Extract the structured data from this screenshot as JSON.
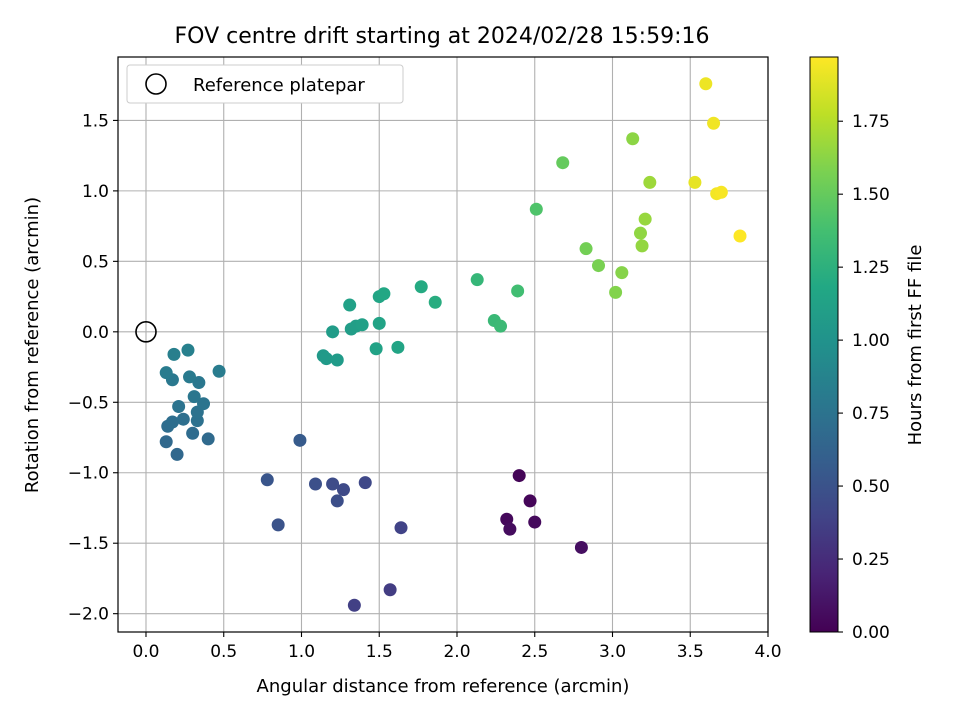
{
  "chart_data": {
    "type": "scatter",
    "title": "FOV centre drift starting at 2024/02/28 15:59:16",
    "xlabel": "Angular distance from reference (arcmin)",
    "ylabel": "Rotation from reference (arcmin)",
    "xlim": [
      -0.18,
      4.0
    ],
    "ylim": [
      -2.13,
      1.95
    ],
    "xticks": [
      0.0,
      0.5,
      1.0,
      1.5,
      2.0,
      2.5,
      3.0,
      3.5,
      4.0
    ],
    "xtick_labels": [
      "0.0",
      "0.5",
      "1.0",
      "1.5",
      "2.0",
      "2.5",
      "3.0",
      "3.5",
      "4.0"
    ],
    "yticks": [
      -2.0,
      -1.5,
      -1.0,
      -0.5,
      0.0,
      0.5,
      1.0,
      1.5
    ],
    "ytick_labels": [
      "−2.0",
      "−1.5",
      "−1.0",
      "−0.5",
      "0.0",
      "0.5",
      "1.0",
      "1.5"
    ],
    "grid": true,
    "legend": {
      "position": "upper-left",
      "entries": [
        {
          "label": "Reference platepar",
          "marker": "open-circle",
          "x": 0.0,
          "y": 0.0
        }
      ]
    },
    "colorbar": {
      "label": "Hours from first FF file",
      "colormap": "viridis",
      "range": [
        0.0,
        1.97
      ],
      "ticks": [
        0.0,
        0.25,
        0.5,
        0.75,
        1.0,
        1.25,
        1.5,
        1.75
      ],
      "tick_labels": [
        "0.00",
        "0.25",
        "0.50",
        "0.75",
        "1.00",
        "1.25",
        "1.50",
        "1.75"
      ]
    },
    "points": [
      {
        "x": 2.4,
        "y": -1.02,
        "c": 0.02
      },
      {
        "x": 2.47,
        "y": -1.2,
        "c": 0.03
      },
      {
        "x": 2.32,
        "y": -1.33,
        "c": 0.04
      },
      {
        "x": 2.5,
        "y": -1.35,
        "c": 0.05
      },
      {
        "x": 2.34,
        "y": -1.4,
        "c": 0.06
      },
      {
        "x": 2.8,
        "y": -1.53,
        "c": 0.08
      },
      {
        "x": 1.57,
        "y": -1.83,
        "c": 0.35
      },
      {
        "x": 1.34,
        "y": -1.94,
        "c": 0.37
      },
      {
        "x": 1.64,
        "y": -1.39,
        "c": 0.39
      },
      {
        "x": 1.41,
        "y": -1.07,
        "c": 0.42
      },
      {
        "x": 1.27,
        "y": -1.12,
        "c": 0.44
      },
      {
        "x": 1.2,
        "y": -1.08,
        "c": 0.45
      },
      {
        "x": 1.23,
        "y": -1.2,
        "c": 0.47
      },
      {
        "x": 1.09,
        "y": -1.08,
        "c": 0.48
      },
      {
        "x": 0.85,
        "y": -1.37,
        "c": 0.5
      },
      {
        "x": 0.78,
        "y": -1.05,
        "c": 0.52
      },
      {
        "x": 0.99,
        "y": -0.77,
        "c": 0.56
      },
      {
        "x": 0.2,
        "y": -0.87,
        "c": 0.66
      },
      {
        "x": 0.13,
        "y": -0.78,
        "c": 0.67
      },
      {
        "x": 0.4,
        "y": -0.76,
        "c": 0.68
      },
      {
        "x": 0.3,
        "y": -0.72,
        "c": 0.69
      },
      {
        "x": 0.14,
        "y": -0.67,
        "c": 0.7
      },
      {
        "x": 0.17,
        "y": -0.64,
        "c": 0.71
      },
      {
        "x": 0.24,
        "y": -0.62,
        "c": 0.72
      },
      {
        "x": 0.33,
        "y": -0.63,
        "c": 0.73
      },
      {
        "x": 0.33,
        "y": -0.57,
        "c": 0.74
      },
      {
        "x": 0.21,
        "y": -0.53,
        "c": 0.75
      },
      {
        "x": 0.37,
        "y": -0.51,
        "c": 0.76
      },
      {
        "x": 0.31,
        "y": -0.46,
        "c": 0.77
      },
      {
        "x": 0.34,
        "y": -0.36,
        "c": 0.78
      },
      {
        "x": 0.17,
        "y": -0.34,
        "c": 0.79
      },
      {
        "x": 0.28,
        "y": -0.32,
        "c": 0.8
      },
      {
        "x": 0.13,
        "y": -0.29,
        "c": 0.81
      },
      {
        "x": 0.47,
        "y": -0.28,
        "c": 0.82
      },
      {
        "x": 0.18,
        "y": -0.16,
        "c": 0.84
      },
      {
        "x": 0.27,
        "y": -0.13,
        "c": 0.85
      },
      {
        "x": 1.14,
        "y": -0.17,
        "c": 1.05
      },
      {
        "x": 1.16,
        "y": -0.19,
        "c": 1.06
      },
      {
        "x": 1.23,
        "y": -0.2,
        "c": 1.07
      },
      {
        "x": 1.2,
        "y": 0.0,
        "c": 1.08
      },
      {
        "x": 1.32,
        "y": 0.02,
        "c": 1.09
      },
      {
        "x": 1.35,
        "y": 0.04,
        "c": 1.1
      },
      {
        "x": 1.39,
        "y": 0.05,
        "c": 1.11
      },
      {
        "x": 1.31,
        "y": 0.19,
        "c": 1.12
      },
      {
        "x": 1.48,
        "y": -0.12,
        "c": 1.13
      },
      {
        "x": 1.5,
        "y": 0.06,
        "c": 1.14
      },
      {
        "x": 1.62,
        "y": -0.11,
        "c": 1.15
      },
      {
        "x": 1.5,
        "y": 0.25,
        "c": 1.16
      },
      {
        "x": 1.53,
        "y": 0.27,
        "c": 1.17
      },
      {
        "x": 1.77,
        "y": 0.32,
        "c": 1.2
      },
      {
        "x": 1.86,
        "y": 0.21,
        "c": 1.22
      },
      {
        "x": 2.13,
        "y": 0.37,
        "c": 1.3
      },
      {
        "x": 2.24,
        "y": 0.08,
        "c": 1.32
      },
      {
        "x": 2.28,
        "y": 0.04,
        "c": 1.33
      },
      {
        "x": 2.39,
        "y": 0.29,
        "c": 1.36
      },
      {
        "x": 2.51,
        "y": 0.87,
        "c": 1.42
      },
      {
        "x": 2.68,
        "y": 1.2,
        "c": 1.5
      },
      {
        "x": 2.83,
        "y": 0.59,
        "c": 1.55
      },
      {
        "x": 2.91,
        "y": 0.47,
        "c": 1.57
      },
      {
        "x": 3.02,
        "y": 0.28,
        "c": 1.6
      },
      {
        "x": 3.06,
        "y": 0.42,
        "c": 1.61
      },
      {
        "x": 3.13,
        "y": 1.37,
        "c": 1.63
      },
      {
        "x": 3.18,
        "y": 0.7,
        "c": 1.64
      },
      {
        "x": 3.19,
        "y": 0.61,
        "c": 1.65
      },
      {
        "x": 3.21,
        "y": 0.8,
        "c": 1.66
      },
      {
        "x": 3.24,
        "y": 1.06,
        "c": 1.68
      },
      {
        "x": 3.53,
        "y": 1.06,
        "c": 1.9
      },
      {
        "x": 3.6,
        "y": 1.76,
        "c": 1.92
      },
      {
        "x": 3.65,
        "y": 1.48,
        "c": 1.93
      },
      {
        "x": 3.67,
        "y": 0.98,
        "c": 1.94
      },
      {
        "x": 3.7,
        "y": 0.99,
        "c": 1.95
      },
      {
        "x": 3.82,
        "y": 0.68,
        "c": 1.97
      }
    ]
  }
}
